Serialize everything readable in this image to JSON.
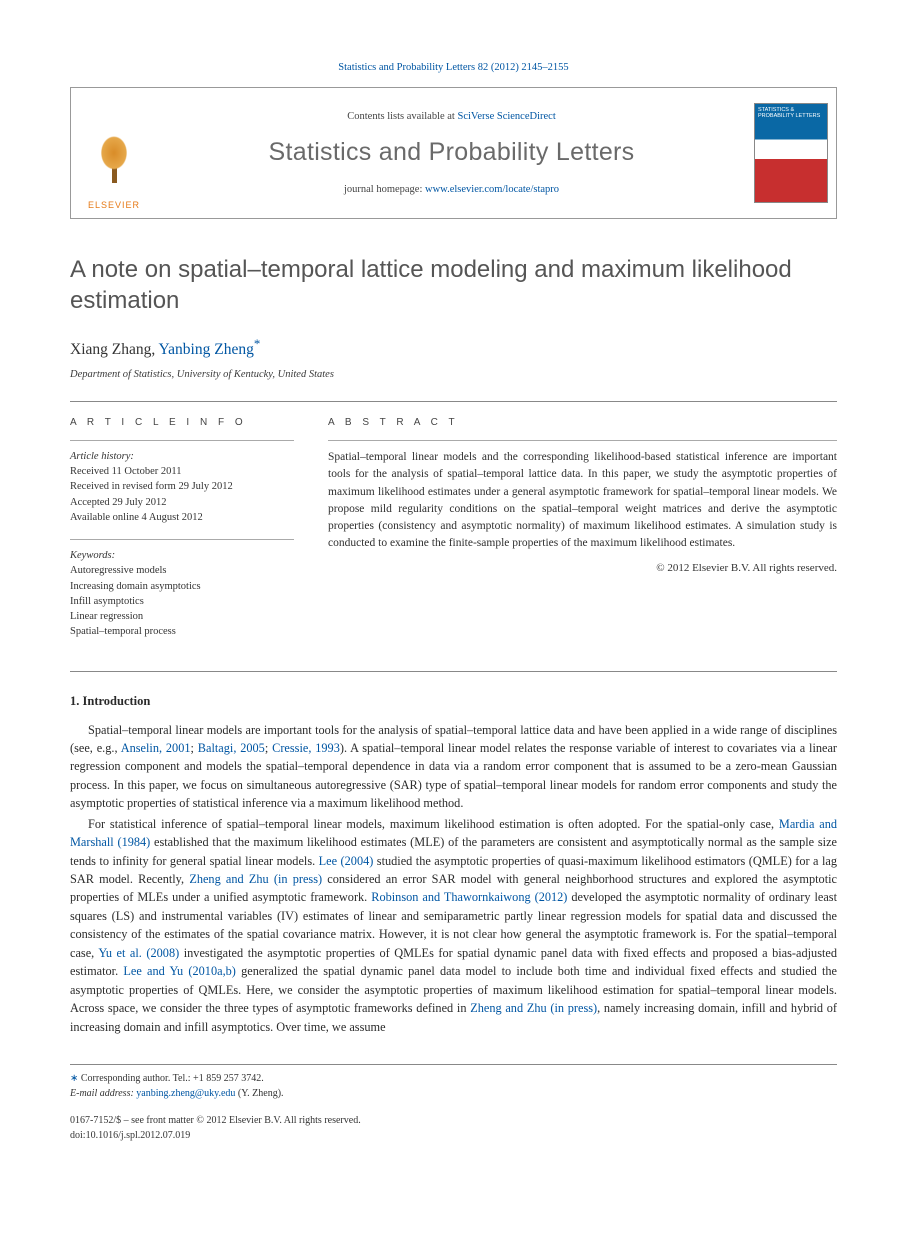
{
  "citation": "Statistics and Probability Letters 82 (2012) 2145–2155",
  "masthead": {
    "publisher": "ELSEVIER",
    "contents_prefix": "Contents lists available at ",
    "contents_link": "SciVerse ScienceDirect",
    "journal": "Statistics and Probability Letters",
    "homepage_prefix": "journal homepage: ",
    "homepage_link": "www.elsevier.com/locate/stapro",
    "cover_text": "STATISTICS & PROBABILITY LETTERS"
  },
  "title": "A note on spatial–temporal lattice modeling and maximum likelihood estimation",
  "authors_html": {
    "a1": "Xiang Zhang, ",
    "a2": "Yanbing Zheng",
    "star": "*"
  },
  "affiliation": "Department of Statistics, University of Kentucky, United States",
  "article_info": {
    "head": "A R T I C L E   I N F O",
    "history_label": "Article history:",
    "h1": "Received 11 October 2011",
    "h2": "Received in revised form 29 July 2012",
    "h3": "Accepted 29 July 2012",
    "h4": "Available online 4 August 2012",
    "keywords_label": "Keywords:",
    "k1": "Autoregressive models",
    "k2": "Increasing domain asymptotics",
    "k3": "Infill asymptotics",
    "k4": "Linear regression",
    "k5": "Spatial–temporal process"
  },
  "abstract": {
    "head": "A B S T R A C T",
    "text": "Spatial–temporal linear models and the corresponding likelihood-based statistical inference are important tools for the analysis of spatial–temporal lattice data. In this paper, we study the asymptotic properties of maximum likelihood estimates under a general asymptotic framework for spatial–temporal linear models. We propose mild regularity conditions on the spatial–temporal weight matrices and derive the asymptotic properties (consistency and asymptotic normality) of maximum likelihood estimates. A simulation study is conducted to examine the finite-sample properties of the maximum likelihood estimates.",
    "copyright": "© 2012 Elsevier B.V. All rights reserved."
  },
  "section1": {
    "head": "1. Introduction",
    "p1a": "Spatial–temporal linear models are important tools for the analysis of spatial–temporal lattice data and have been applied in a wide range of disciplines (see, e.g., ",
    "p1_l1": "Anselin, 2001",
    "p1_s1": "; ",
    "p1_l2": "Baltagi, 2005",
    "p1_s2": "; ",
    "p1_l3": "Cressie, 1993",
    "p1b": "). A spatial–temporal linear model relates the response variable of interest to covariates via a linear regression component and models the spatial–temporal dependence in data via a random error component that is assumed to be a zero-mean Gaussian process. In this paper, we focus on simultaneous autoregressive (SAR) type of spatial–temporal linear models for random error components and study the asymptotic properties of statistical inference via a maximum likelihood method.",
    "p2a": "For statistical inference of spatial–temporal linear models, maximum likelihood estimation is often adopted. For the spatial-only case, ",
    "p2_l1": "Mardia and Marshall (1984)",
    "p2b": " established that the maximum likelihood estimates (MLE) of the parameters are consistent and asymptotically normal as the sample size tends to infinity for general spatial linear models. ",
    "p2_l2": "Lee (2004)",
    "p2c": " studied the asymptotic properties of quasi-maximum likelihood estimators (QMLE) for a lag SAR model. Recently, ",
    "p2_l3": "Zheng and Zhu (in press)",
    "p2d": " considered an error SAR model with general neighborhood structures and explored the asymptotic properties of MLEs under a unified asymptotic framework. ",
    "p2_l4": "Robinson and Thawornkaiwong (2012)",
    "p2e": " developed the asymptotic normality of ordinary least squares (LS) and instrumental variables (IV) estimates of linear and semiparametric partly linear regression models for spatial data and discussed the consistency of the estimates of the spatial covariance matrix. However, it is not clear how general the asymptotic framework is. For the spatial–temporal case, ",
    "p2_l5": "Yu et al. (2008)",
    "p2f": " investigated the asymptotic properties of QMLEs for spatial dynamic panel data with fixed effects and proposed a bias-adjusted estimator. ",
    "p2_l6": "Lee and Yu (2010a,b)",
    "p2g": " generalized the spatial dynamic panel data model to include both time and individual fixed effects and studied the asymptotic properties of QMLEs. Here, we consider the asymptotic properties of maximum likelihood estimation for spatial–temporal linear models. Across space, we consider the three types of asymptotic frameworks defined in ",
    "p2_l7": "Zheng and Zhu (in press)",
    "p2h": ", namely increasing domain, infill and hybrid of increasing domain and infill asymptotics. Over time, we assume"
  },
  "footer": {
    "corr_label": "Corresponding author. Tel.: +1 859 257 3742.",
    "email_label": "E-mail address:",
    "email": "yanbing.zheng@uky.edu",
    "email_who": " (Y. Zheng).",
    "line1": "0167-7152/$ – see front matter © 2012 Elsevier B.V. All rights reserved.",
    "doi_label": "doi:",
    "doi": "10.1016/j.spl.2012.07.019"
  },
  "colors": {
    "link": "#0056a3",
    "text": "#2a2a2a",
    "heading_gray": "#555555",
    "orange": "#e67a17"
  }
}
